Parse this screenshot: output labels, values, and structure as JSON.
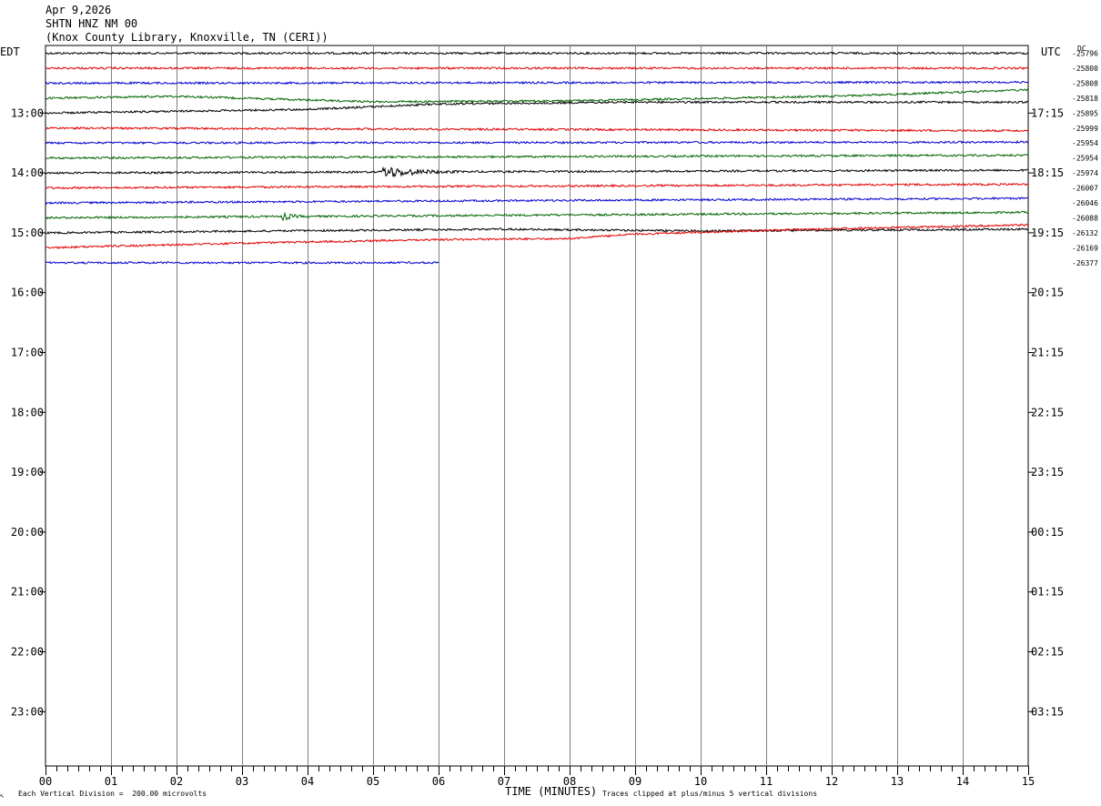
{
  "header": {
    "date": "Apr 9,2026",
    "station": "SHTN HNZ NM 00",
    "location": "(Knox County Library, Knoxville, TN (CERI))"
  },
  "left_axis_label": "EDT",
  "right_axis_label": "UTC",
  "dc_label": "DC",
  "footer": {
    "scale_note": "Each Vertical Division =  200.00 microvolts",
    "clip_note": "Traces clipped at plus/minus 5 vertical divisions",
    "corner_mark": "↖"
  },
  "colors": {
    "black": "#000000",
    "red": "#e00000",
    "blue": "#0000d0",
    "green": "#006400",
    "grid": "#808080"
  },
  "chart_data": {
    "type": "line",
    "xlabel": "TIME (MINUTES)",
    "x_ticks": [
      "00",
      "01",
      "02",
      "03",
      "04",
      "05",
      "06",
      "07",
      "08",
      "09",
      "10",
      "11",
      "12",
      "13",
      "14",
      "15"
    ],
    "xlim": [
      0,
      15
    ],
    "row_duration_minutes": 15,
    "hour_labels_local": [
      "13:00",
      "14:00",
      "15:00",
      "16:00",
      "17:00",
      "18:00",
      "19:00",
      "20:00",
      "21:00",
      "22:00",
      "23:00"
    ],
    "hour_labels_utc": [
      "17:15",
      "18:15",
      "19:15",
      "20:15",
      "21:15",
      "22:15",
      "23:15",
      "00:15",
      "01:15",
      "02:15",
      "03:15"
    ],
    "color_cycle": [
      "black",
      "red",
      "blue",
      "green"
    ],
    "traces": [
      {
        "dc": "-25796",
        "color": "black",
        "end_minute": 15,
        "drift": [
          0,
          0
        ]
      },
      {
        "dc": "-25800",
        "color": "red",
        "end_minute": 15,
        "drift": [
          0,
          0
        ]
      },
      {
        "dc": "-25808",
        "color": "blue",
        "end_minute": 15,
        "drift": [
          0,
          -1
        ]
      },
      {
        "dc": "-25818",
        "color": "green",
        "end_minute": 15,
        "drift": [
          [
            0,
            0
          ],
          [
            2,
            -2
          ],
          [
            5,
            4
          ],
          [
            8,
            3
          ],
          [
            12,
            -2
          ],
          [
            15,
            -9
          ]
        ]
      },
      {
        "dc": "-25895",
        "color": "black",
        "end_minute": 15,
        "drift": [
          [
            0,
            0
          ],
          [
            4,
            -4
          ],
          [
            6,
            -10
          ],
          [
            9,
            -12
          ],
          [
            15,
            -12
          ]
        ]
      },
      {
        "dc": "-25999",
        "color": "red",
        "end_minute": 15,
        "drift": [
          0,
          3
        ]
      },
      {
        "dc": "-25954",
        "color": "blue",
        "end_minute": 15,
        "drift": [
          0,
          -1
        ]
      },
      {
        "dc": "-25954",
        "color": "green",
        "end_minute": 15,
        "drift": [
          0,
          -3
        ]
      },
      {
        "dc": "-25974",
        "color": "black",
        "end_minute": 15,
        "drift": [
          0,
          -3
        ],
        "events": [
          {
            "start": 5.1,
            "end": 6.3,
            "amp": 8
          }
        ]
      },
      {
        "dc": "-26007",
        "color": "red",
        "end_minute": 15,
        "drift": [
          0,
          -4
        ]
      },
      {
        "dc": "-26046",
        "color": "blue",
        "end_minute": 15,
        "drift": [
          0,
          -5
        ]
      },
      {
        "dc": "-26088",
        "color": "green",
        "end_minute": 15,
        "drift": [
          0,
          -6
        ],
        "events": [
          {
            "start": 3.6,
            "end": 3.95,
            "amp": 5
          }
        ]
      },
      {
        "dc": "-26132",
        "color": "black",
        "end_minute": 15,
        "drift": [
          [
            0,
            0
          ],
          [
            7,
            -4
          ],
          [
            10,
            -2
          ],
          [
            15,
            -4
          ]
        ]
      },
      {
        "dc": "-26169",
        "color": "red",
        "end_minute": 15,
        "drift": [
          [
            0,
            0
          ],
          [
            3,
            -5
          ],
          [
            6,
            -9
          ],
          [
            8,
            -10
          ],
          [
            9,
            -15
          ],
          [
            12,
            -21
          ],
          [
            15,
            -25
          ]
        ]
      },
      {
        "dc": "-26377",
        "color": "blue",
        "end_minute": 6,
        "drift": [
          0,
          0
        ]
      }
    ]
  }
}
